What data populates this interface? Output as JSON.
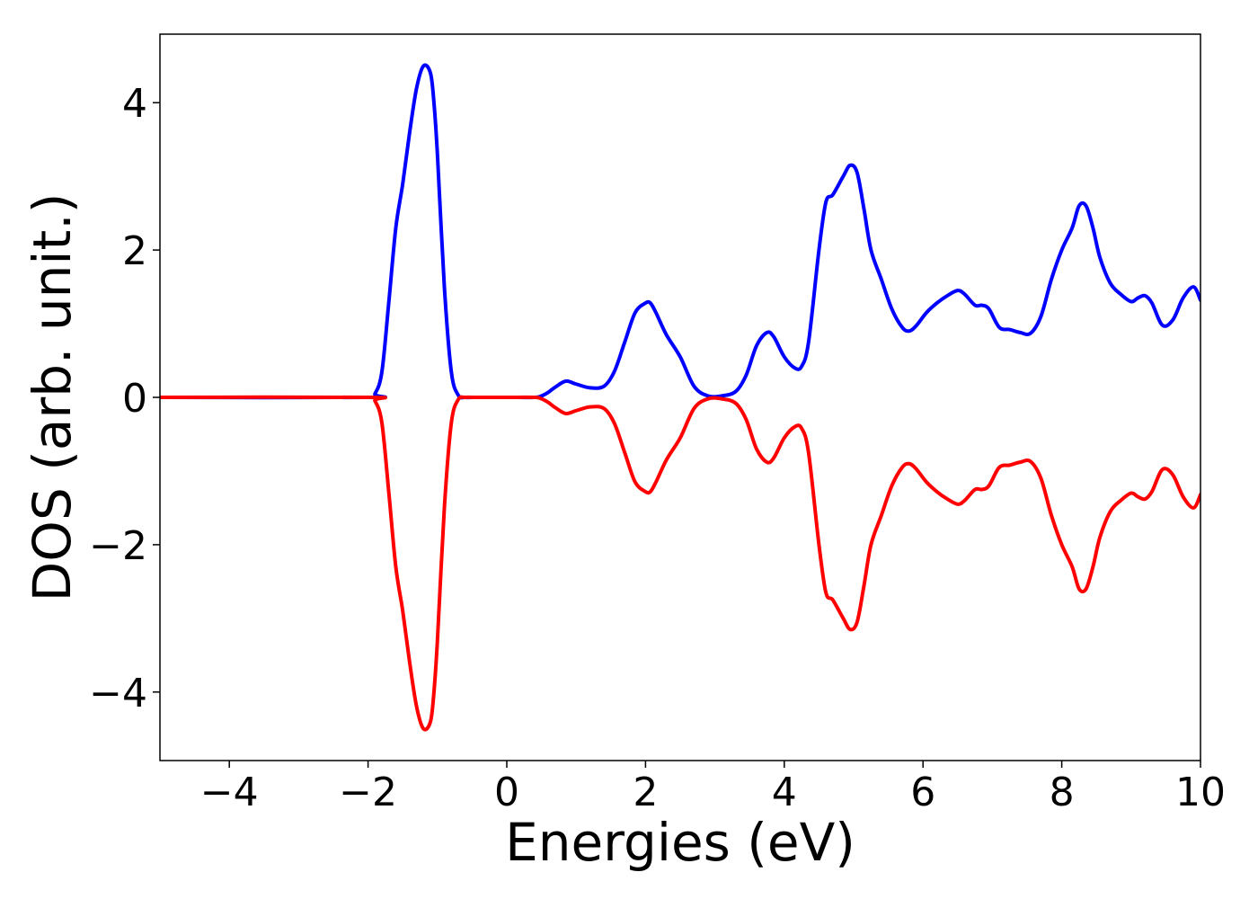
{
  "chart_data": {
    "type": "line",
    "title": "",
    "xlabel": "Energies (eV)",
    "ylabel": "DOS (arb. unit.)",
    "xlim": [
      -5,
      10
    ],
    "ylim": [
      -4.93,
      4.93
    ],
    "xticks": [
      -4,
      -2,
      0,
      2,
      4,
      6,
      8,
      10
    ],
    "xtick_labels": [
      "−4",
      "−2",
      "0",
      "2",
      "4",
      "6",
      "8",
      "10"
    ],
    "yticks": [
      -4,
      -2,
      0,
      2,
      4
    ],
    "ytick_labels": [
      "−4",
      "−2",
      "0",
      "2",
      "4"
    ],
    "grid": false,
    "series": [
      {
        "color": "#0000ff",
        "x": [
          -5.0,
          -2.0,
          -1.9,
          -1.8,
          -1.7,
          -1.6,
          -1.5,
          -1.4,
          -1.3,
          -1.2,
          -1.1,
          -1.05,
          -1.0,
          -0.9,
          -0.8,
          -0.7,
          -0.6,
          -0.5,
          -0.4,
          0.0,
          0.4,
          0.5,
          0.6,
          0.7,
          0.85,
          1.0,
          1.2,
          1.4,
          1.55,
          1.7,
          1.85,
          2.0,
          2.07,
          2.15,
          2.3,
          2.5,
          2.7,
          2.9,
          3.1,
          3.3,
          3.45,
          3.6,
          3.75,
          3.85,
          4.0,
          4.15,
          4.25,
          4.35,
          4.5,
          4.6,
          4.7,
          4.85,
          4.95,
          5.05,
          5.15,
          5.25,
          5.4,
          5.55,
          5.7,
          5.8,
          5.9,
          6.05,
          6.2,
          6.35,
          6.5,
          6.6,
          6.75,
          6.85,
          6.95,
          7.1,
          7.25,
          7.4,
          7.55,
          7.7,
          7.85,
          8.0,
          8.15,
          8.25,
          8.35,
          8.45,
          8.55,
          8.7,
          8.85,
          9.0,
          9.1,
          9.2,
          9.3,
          9.45,
          9.6,
          9.75,
          9.9,
          10.0
        ],
        "y": [
          0.0,
          0.0,
          0.05,
          0.35,
          1.3,
          2.3,
          2.9,
          3.6,
          4.2,
          4.5,
          4.4,
          4.0,
          3.3,
          1.5,
          0.35,
          0.03,
          0.0,
          0.0,
          0.0,
          0.0,
          0.0,
          0.02,
          0.07,
          0.14,
          0.22,
          0.18,
          0.13,
          0.15,
          0.35,
          0.75,
          1.15,
          1.28,
          1.28,
          1.15,
          0.85,
          0.55,
          0.15,
          0.02,
          0.02,
          0.08,
          0.3,
          0.7,
          0.88,
          0.82,
          0.55,
          0.4,
          0.42,
          0.75,
          2.0,
          2.65,
          2.75,
          3.0,
          3.15,
          3.05,
          2.55,
          2.0,
          1.6,
          1.2,
          0.95,
          0.9,
          0.97,
          1.15,
          1.28,
          1.38,
          1.45,
          1.4,
          1.25,
          1.25,
          1.2,
          0.95,
          0.92,
          0.88,
          0.87,
          1.1,
          1.6,
          2.0,
          2.3,
          2.6,
          2.6,
          2.3,
          1.9,
          1.55,
          1.4,
          1.3,
          1.35,
          1.38,
          1.28,
          0.98,
          1.05,
          1.35,
          1.5,
          1.32
        ]
      },
      {
        "color": "#ff0000",
        "x": [
          -5.0,
          -2.0,
          -1.9,
          -1.8,
          -1.7,
          -1.6,
          -1.5,
          -1.4,
          -1.3,
          -1.2,
          -1.1,
          -1.05,
          -1.0,
          -0.9,
          -0.8,
          -0.7,
          -0.6,
          -0.5,
          -0.4,
          0.0,
          0.4,
          0.5,
          0.6,
          0.7,
          0.85,
          1.0,
          1.2,
          1.4,
          1.55,
          1.7,
          1.85,
          2.0,
          2.07,
          2.15,
          2.3,
          2.5,
          2.7,
          2.9,
          3.1,
          3.3,
          3.45,
          3.6,
          3.75,
          3.85,
          4.0,
          4.15,
          4.25,
          4.35,
          4.5,
          4.6,
          4.7,
          4.85,
          4.95,
          5.05,
          5.15,
          5.25,
          5.4,
          5.55,
          5.7,
          5.8,
          5.9,
          6.05,
          6.2,
          6.35,
          6.5,
          6.6,
          6.75,
          6.85,
          6.95,
          7.1,
          7.25,
          7.4,
          7.55,
          7.7,
          7.85,
          8.0,
          8.15,
          8.25,
          8.35,
          8.45,
          8.55,
          8.7,
          8.85,
          9.0,
          9.1,
          9.2,
          9.3,
          9.45,
          9.6,
          9.75,
          9.9,
          10.0
        ],
        "y": [
          0.0,
          0.0,
          -0.05,
          -0.35,
          -1.3,
          -2.3,
          -2.9,
          -3.6,
          -4.2,
          -4.5,
          -4.4,
          -4.0,
          -3.3,
          -1.5,
          -0.35,
          -0.03,
          0.0,
          0.0,
          0.0,
          0.0,
          0.0,
          -0.02,
          -0.07,
          -0.14,
          -0.22,
          -0.18,
          -0.13,
          -0.15,
          -0.35,
          -0.75,
          -1.15,
          -1.28,
          -1.28,
          -1.15,
          -0.85,
          -0.55,
          -0.15,
          -0.02,
          -0.02,
          -0.08,
          -0.3,
          -0.7,
          -0.88,
          -0.82,
          -0.55,
          -0.4,
          -0.42,
          -0.75,
          -2.0,
          -2.65,
          -2.75,
          -3.0,
          -3.15,
          -3.05,
          -2.55,
          -2.0,
          -1.6,
          -1.2,
          -0.95,
          -0.9,
          -0.97,
          -1.15,
          -1.28,
          -1.38,
          -1.45,
          -1.4,
          -1.25,
          -1.25,
          -1.2,
          -0.95,
          -0.92,
          -0.88,
          -0.87,
          -1.1,
          -1.6,
          -2.0,
          -2.3,
          -2.6,
          -2.6,
          -2.3,
          -1.9,
          -1.55,
          -1.4,
          -1.3,
          -1.35,
          -1.38,
          -1.28,
          -0.98,
          -1.05,
          -1.35,
          -1.5,
          -1.32
        ]
      }
    ]
  }
}
